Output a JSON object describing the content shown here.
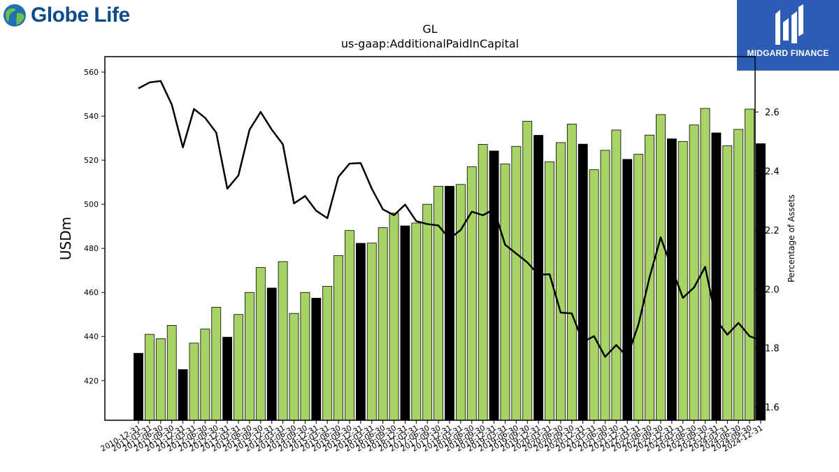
{
  "logos": {
    "left_text": "Globe Life",
    "right_text": "MIDGARD FINANCE"
  },
  "colors": {
    "bar_green": "#a8d466",
    "bar_black": "#000000",
    "line": "#000000",
    "brand_blue": "#0b4a8b",
    "badge_blue": "#2c5cb3"
  },
  "chart_data": {
    "type": "bar",
    "title": "GL",
    "subtitle": "us-gaap:AdditionalPaidInCapital",
    "ylabel": "USDm",
    "y2label": "Percentage of Assets",
    "ylim": [
      402,
      567
    ],
    "y2lim": [
      1.555,
      2.7875
    ],
    "yticks": [
      420,
      440,
      460,
      480,
      500,
      520,
      540,
      560
    ],
    "y2ticks": [
      1.6,
      1.8,
      2.0,
      2.2,
      2.4,
      2.6
    ],
    "grid": false,
    "categories": [
      "2010-12-31",
      "2011-03-31",
      "2011-06-30",
      "2011-09-30",
      "2011-12-31",
      "2012-03-31",
      "2012-06-30",
      "2012-09-30",
      "2012-12-31",
      "2013-03-31",
      "2013-06-30",
      "2013-09-30",
      "2013-12-31",
      "2014-03-31",
      "2014-06-30",
      "2014-09-30",
      "2014-12-31",
      "2015-03-31",
      "2015-06-30",
      "2015-09-30",
      "2015-12-31",
      "2016-03-31",
      "2016-06-30",
      "2016-09-30",
      "2016-12-31",
      "2017-03-31",
      "2017-06-30",
      "2017-09-30",
      "2017-12-31",
      "2018-03-31",
      "2018-06-30",
      "2018-09-30",
      "2018-12-31",
      "2019-03-31",
      "2019-06-30",
      "2019-09-30",
      "2019-12-31",
      "2020-03-31",
      "2020-06-30",
      "2020-09-30",
      "2020-12-31",
      "2021-03-31",
      "2021-06-30",
      "2021-09-30",
      "2021-12-31",
      "2022-03-31",
      "2022-06-30",
      "2022-09-30",
      "2022-12-31",
      "2023-03-31",
      "2023-06-30",
      "2023-09-30",
      "2023-12-31",
      "2024-03-31",
      "2024-06-30",
      "2024-09-30",
      "2024-12-31"
    ],
    "series": [
      {
        "type": "bar",
        "axis": "left",
        "values": [
          432.4,
          441.0,
          439.0,
          445.0,
          425.0,
          437.0,
          443.4,
          453.3,
          439.7,
          450.0,
          460.0,
          471.3,
          462.0,
          474.0,
          450.5,
          460.0,
          457.4,
          462.8,
          476.7,
          488.1,
          482.3,
          482.4,
          489.4,
          496.0,
          490.2,
          491.5,
          500.0,
          508.2,
          508.2,
          509.0,
          517.0,
          527.2,
          524.2,
          518.3,
          526.3,
          537.7,
          531.3,
          519.3,
          528.0,
          536.4,
          527.3,
          515.7,
          524.5,
          533.7,
          520.4,
          522.7,
          531.4,
          540.7,
          529.7,
          528.5,
          536.0,
          543.5,
          532.4,
          526.6,
          534.0,
          543.2,
          527.5
        ],
        "highlight": [
          true,
          false,
          false,
          false,
          true,
          false,
          false,
          false,
          true,
          false,
          false,
          false,
          true,
          false,
          false,
          false,
          true,
          false,
          false,
          false,
          true,
          false,
          false,
          false,
          true,
          false,
          false,
          false,
          true,
          false,
          false,
          false,
          true,
          false,
          false,
          false,
          true,
          false,
          false,
          false,
          true,
          false,
          false,
          false,
          true,
          false,
          false,
          false,
          true,
          false,
          false,
          false,
          true,
          false,
          false,
          false,
          true
        ]
      },
      {
        "type": "line",
        "axis": "right",
        "values": [
          2.68,
          2.7,
          2.705,
          2.625,
          2.48,
          2.61,
          2.58,
          2.53,
          2.34,
          2.385,
          2.54,
          2.6,
          2.54,
          2.49,
          2.29,
          2.315,
          2.265,
          2.24,
          2.38,
          2.425,
          2.427,
          2.34,
          2.27,
          2.25,
          2.286,
          2.23,
          2.22,
          2.215,
          2.17,
          2.2,
          2.262,
          2.25,
          2.27,
          2.15,
          2.12,
          2.09,
          2.048,
          2.05,
          1.92,
          1.917,
          1.82,
          1.84,
          1.77,
          1.81,
          1.77,
          1.88,
          2.04,
          2.175,
          2.07,
          1.97,
          2.005,
          2.075,
          1.895,
          1.845,
          1.885,
          1.84,
          1.825
        ]
      }
    ]
  }
}
